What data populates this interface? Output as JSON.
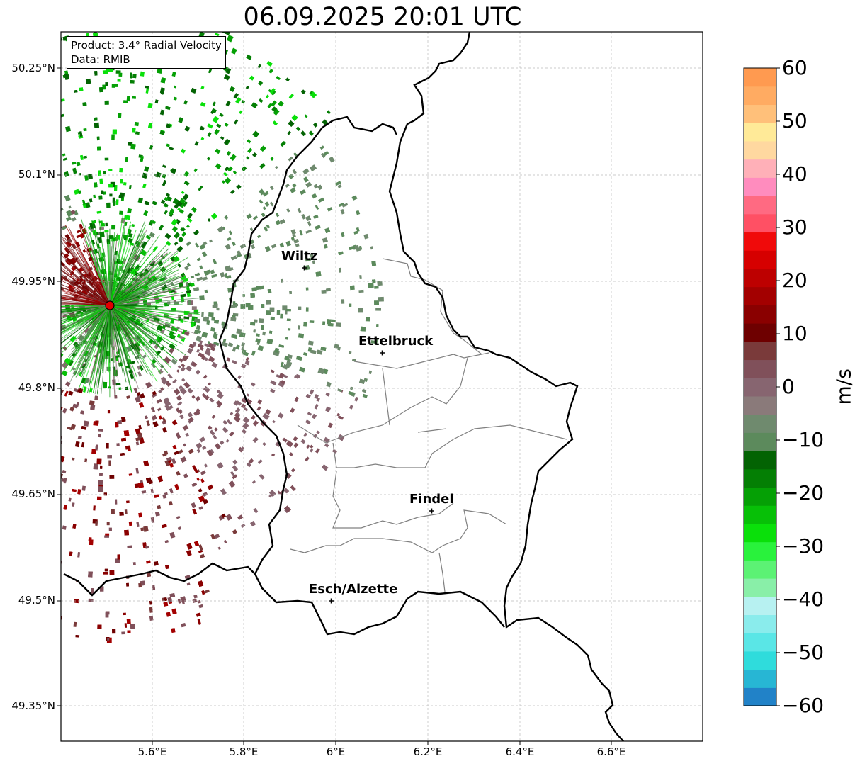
{
  "title": "06.09.2025 20:01 UTC",
  "info": {
    "product": "Product: 3.4° Radial Velocity",
    "data": "Data: RMIB"
  },
  "axes": {
    "lat_labels": [
      "50.25°N",
      "50.1°N",
      "49.95°N",
      "49.8°N",
      "49.65°N",
      "49.5°N",
      "49.35°N"
    ],
    "lon_labels": [
      "5.6°E",
      "5.8°E",
      "6°E",
      "6.2°E",
      "6.4°E",
      "6.6°E"
    ]
  },
  "cities": [
    {
      "name": "Wiltz"
    },
    {
      "name": "Ettelbruck"
    },
    {
      "name": "Findel"
    },
    {
      "name": "Esch/Alzette"
    }
  ],
  "colorbar": {
    "unit": "m/s",
    "ticks": [
      "60",
      "50",
      "40",
      "30",
      "20",
      "10",
      "0",
      "−10",
      "−20",
      "−30",
      "−40",
      "−50",
      "−60"
    ],
    "range": [
      -60,
      60
    ],
    "colors": [
      "#2182c8",
      "#27b6d4",
      "#2fdcdc",
      "#5ae6e6",
      "#8aecec",
      "#b7f1f1",
      "#89efa8",
      "#5cf274",
      "#29f23c",
      "#0ae00a",
      "#07c007",
      "#05a005",
      "#047f04",
      "#036303",
      "#5c8a5c",
      "#6f8a6e",
      "#8a7a7a",
      "#876570",
      "#80505a",
      "#7a3a3a",
      "#6e0000",
      "#8a0000",
      "#a30000",
      "#bd0000",
      "#d60000",
      "#f00a0a",
      "#ff5064",
      "#ff6a82",
      "#ff8cbe",
      "#ffb0b8",
      "#ffd8a0",
      "#ffea98",
      "#ffc07a",
      "#ffab62",
      "#ff9a50"
    ]
  },
  "radar": {
    "site_color": "#e00000"
  }
}
